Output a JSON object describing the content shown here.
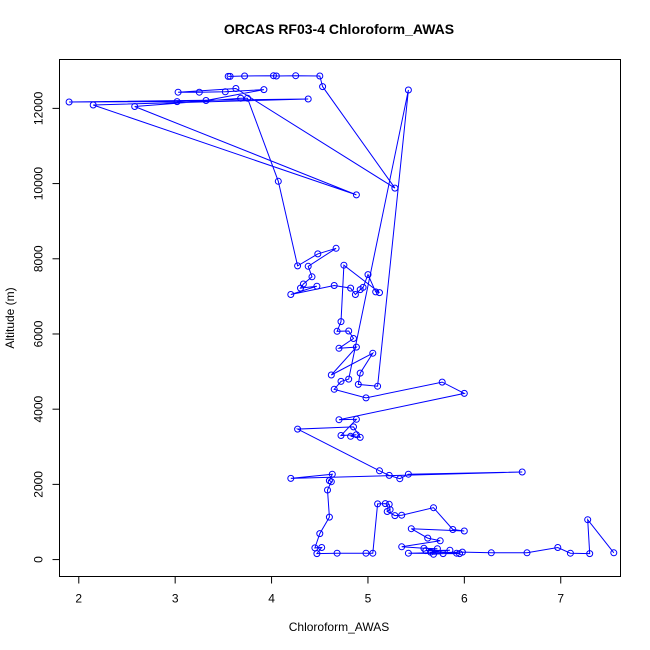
{
  "chart_data": {
    "type": "line",
    "title": "ORCAS RF03-4 Chloroform_AWAS",
    "xlabel": "Chloroform_AWAS",
    "ylabel": "Altitude (m)",
    "xlim": [
      1.8,
      7.62
    ],
    "ylim": [
      -450,
      13300
    ],
    "xticks": [
      2,
      3,
      4,
      5,
      6,
      7
    ],
    "xtick_labels": [
      "2",
      "3",
      "4",
      "5",
      "6",
      "7"
    ],
    "yticks": [
      0,
      2000,
      4000,
      6000,
      8000,
      10000,
      12000
    ],
    "ytick_labels": [
      "0",
      "2000",
      "4000",
      "6000",
      "8000",
      "10000",
      "12000"
    ],
    "grid": false,
    "series_color": "#0000ff",
    "points": [
      [
        3.55,
        12850
      ],
      [
        3.57,
        12850
      ],
      [
        3.72,
        12860
      ],
      [
        4.02,
        12870
      ],
      [
        4.05,
        12860
      ],
      [
        4.25,
        12870
      ],
      [
        4.5,
        12860
      ],
      [
        4.53,
        12580
      ],
      [
        5.28,
        9880
      ],
      [
        3.63,
        12530
      ],
      [
        3.03,
        12430
      ],
      [
        3.25,
        12430
      ],
      [
        3.52,
        12440
      ],
      [
        3.92,
        12500
      ],
      [
        3.32,
        12210
      ],
      [
        3.02,
        12180
      ],
      [
        1.9,
        12170
      ],
      [
        4.38,
        12250
      ],
      [
        2.15,
        12090
      ],
      [
        4.88,
        9700
      ],
      [
        2.58,
        12050
      ],
      [
        3.68,
        12270
      ],
      [
        3.75,
        12270
      ],
      [
        4.07,
        10060
      ],
      [
        4.27,
        7810
      ],
      [
        4.48,
        8130
      ],
      [
        4.67,
        8280
      ],
      [
        4.38,
        7800
      ],
      [
        4.42,
        7520
      ],
      [
        4.33,
        7330
      ],
      [
        4.3,
        7220
      ],
      [
        4.47,
        7270
      ],
      [
        4.2,
        7050
      ],
      [
        4.65,
        7290
      ],
      [
        4.82,
        7220
      ],
      [
        4.87,
        7050
      ],
      [
        4.92,
        7180
      ],
      [
        4.95,
        7240
      ],
      [
        5.0,
        7580
      ],
      [
        5.08,
        7120
      ],
      [
        5.12,
        7100
      ],
      [
        4.75,
        7830
      ],
      [
        4.72,
        6330
      ],
      [
        4.68,
        6070
      ],
      [
        4.8,
        6080
      ],
      [
        4.85,
        5880
      ],
      [
        4.7,
        5620
      ],
      [
        4.88,
        5650
      ],
      [
        4.62,
        4910
      ],
      [
        5.05,
        5490
      ],
      [
        4.92,
        4960
      ],
      [
        4.9,
        4660
      ],
      [
        5.1,
        4610
      ],
      [
        5.42,
        12490
      ],
      [
        4.8,
        4800
      ],
      [
        4.72,
        4740
      ],
      [
        4.65,
        4530
      ],
      [
        4.98,
        4300
      ],
      [
        5.77,
        4720
      ],
      [
        6.0,
        4420
      ],
      [
        4.7,
        3720
      ],
      [
        4.88,
        3730
      ],
      [
        4.72,
        3300
      ],
      [
        4.88,
        3320
      ],
      [
        4.82,
        3280
      ],
      [
        4.92,
        3250
      ],
      [
        4.85,
        3530
      ],
      [
        4.27,
        3470
      ],
      [
        5.12,
        2360
      ],
      [
        5.22,
        2240
      ],
      [
        5.33,
        2150
      ],
      [
        5.42,
        2270
      ],
      [
        6.6,
        2330
      ],
      [
        4.2,
        2160
      ],
      [
        4.63,
        2270
      ],
      [
        4.6,
        2100
      ],
      [
        4.62,
        2070
      ],
      [
        4.58,
        1850
      ],
      [
        4.6,
        1130
      ],
      [
        4.5,
        690
      ],
      [
        4.45,
        310
      ],
      [
        4.52,
        320
      ],
      [
        4.47,
        160
      ],
      [
        4.68,
        170
      ],
      [
        4.98,
        170
      ],
      [
        5.05,
        170
      ],
      [
        5.1,
        1480
      ],
      [
        5.18,
        1490
      ],
      [
        5.22,
        1470
      ],
      [
        5.23,
        1330
      ],
      [
        5.2,
        1280
      ],
      [
        5.28,
        1170
      ],
      [
        5.35,
        1180
      ],
      [
        5.68,
        1380
      ],
      [
        5.88,
        800
      ],
      [
        6.0,
        760
      ],
      [
        5.45,
        820
      ],
      [
        5.62,
        570
      ],
      [
        5.75,
        500
      ],
      [
        5.35,
        340
      ],
      [
        5.58,
        300
      ],
      [
        5.72,
        290
      ],
      [
        5.6,
        240
      ],
      [
        5.85,
        250
      ],
      [
        5.65,
        200
      ],
      [
        5.68,
        140
      ],
      [
        5.78,
        160
      ],
      [
        5.92,
        170
      ],
      [
        5.95,
        160
      ],
      [
        5.42,
        170
      ],
      [
        5.98,
        200
      ],
      [
        6.28,
        180
      ],
      [
        6.65,
        180
      ],
      [
        6.97,
        320
      ],
      [
        7.1,
        170
      ],
      [
        7.3,
        160
      ],
      [
        7.28,
        1060
      ],
      [
        7.55,
        180
      ]
    ]
  }
}
